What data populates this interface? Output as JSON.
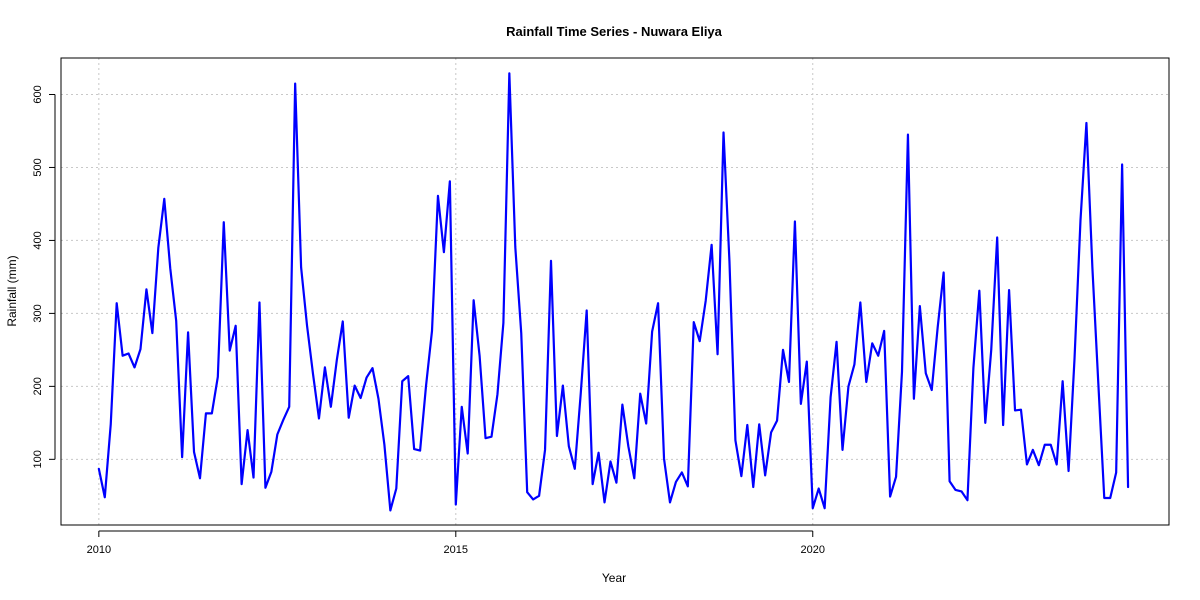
{
  "chart_data": {
    "type": "line",
    "title": "Rainfall Time Series - Nuwara Eliya",
    "xlabel": "Year",
    "ylabel": "Rainfall (mm)",
    "x_ticks": [
      2010,
      2015,
      2020
    ],
    "y_ticks": [
      100,
      200,
      300,
      400,
      500,
      600
    ],
    "xlim": [
      2009.47,
      2024.99
    ],
    "ylim": [
      10,
      650
    ],
    "grid": true,
    "line_color": "#0000ff",
    "grid_color": "#c8c8c8",
    "series": [
      {
        "x_start": "2010-01",
        "frequency": "monthly",
        "values": [
          87,
          48,
          148,
          314,
          242,
          245,
          226,
          251,
          333,
          273,
          390,
          457,
          362,
          290,
          103,
          274,
          110,
          74,
          163,
          163,
          213,
          425,
          249,
          283,
          66,
          140,
          75,
          315,
          61,
          83,
          134,
          154,
          172,
          615,
          363,
          283,
          217,
          156,
          226,
          172,
          236,
          289,
          157,
          201,
          184,
          212,
          225,
          183,
          120,
          30,
          60,
          207,
          214,
          114,
          112,
          201,
          276,
          461,
          384,
          481,
          38,
          172,
          108,
          318,
          242,
          129,
          131,
          189,
          287,
          629,
          391,
          273,
          55,
          45,
          50,
          113,
          372,
          132,
          201,
          118,
          87,
          190,
          304,
          66,
          109,
          41,
          97,
          68,
          175,
          118,
          74,
          190,
          149,
          275,
          314,
          101,
          41,
          69,
          82,
          63,
          288,
          262,
          317,
          394,
          244,
          548,
          371,
          126,
          77,
          147,
          62,
          148,
          78,
          137,
          153,
          250,
          206,
          426,
          176,
          234,
          33,
          60,
          33,
          185,
          261,
          113,
          200,
          230,
          315,
          206,
          259,
          242,
          276,
          49,
          76,
          220,
          545,
          183,
          310,
          218,
          195,
          281,
          356,
          70,
          58,
          56,
          44,
          225,
          331,
          150,
          250,
          404,
          147,
          332,
          167,
          168,
          93,
          113,
          92,
          120,
          120,
          93,
          207,
          84,
          238,
          427,
          561,
          363,
          204,
          47,
          47,
          82,
          504,
          62
        ]
      }
    ]
  }
}
